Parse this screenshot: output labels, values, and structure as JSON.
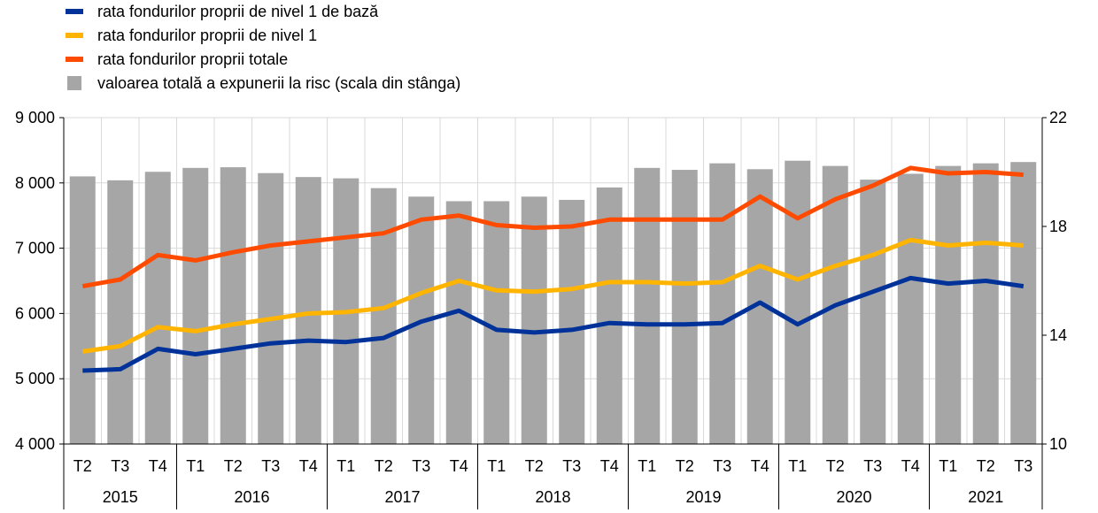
{
  "colors": {
    "cet1": "#003299",
    "tier1": "#FFB400",
    "total": "#FF4B00",
    "bars": "#A6A6A6",
    "grid": "#D9D9D9",
    "axis": "#000000"
  },
  "legend": [
    {
      "label": "rata fondurilor proprii de nivel 1 de bază",
      "color_key": "cet1",
      "kind": "line"
    },
    {
      "label": "rata fondurilor proprii de nivel 1",
      "color_key": "tier1",
      "kind": "line"
    },
    {
      "label": "rata fondurilor proprii totale",
      "color_key": "total",
      "kind": "line"
    },
    {
      "label": "valoarea totală a expunerii la risc (scala din stânga)",
      "color_key": "bars",
      "kind": "bar"
    }
  ],
  "chart_data": {
    "type": "bar+line",
    "title": "",
    "quarters": [
      "T2",
      "T3",
      "T4",
      "T1",
      "T2",
      "T3",
      "T4",
      "T1",
      "T2",
      "T3",
      "T4",
      "T1",
      "T2",
      "T3",
      "T4",
      "T1",
      "T2",
      "T3",
      "T4",
      "T1",
      "T2",
      "T3",
      "T4",
      "T1",
      "T2",
      "T3"
    ],
    "years": [
      {
        "label": "2015",
        "count": 3
      },
      {
        "label": "2016",
        "count": 4
      },
      {
        "label": "2017",
        "count": 4
      },
      {
        "label": "2018",
        "count": 4
      },
      {
        "label": "2019",
        "count": 4
      },
      {
        "label": "2020",
        "count": 4
      },
      {
        "label": "2021",
        "count": 3
      }
    ],
    "left_axis": {
      "min": 4000,
      "max": 9000,
      "ticks": [
        4000,
        5000,
        6000,
        7000,
        8000,
        9000
      ],
      "tick_labels": [
        "4 000",
        "5 000",
        "6 000",
        "7 000",
        "8 000",
        "9 000"
      ]
    },
    "right_axis": {
      "min": 10,
      "max": 22,
      "ticks": [
        10,
        14,
        18,
        22
      ],
      "tick_labels": [
        "10",
        "14",
        "18",
        "22"
      ]
    },
    "gridlines": true,
    "legend_position": "top-left",
    "bars": {
      "name": "valoarea totală a expunerii la risc (scala din stânga)",
      "axis": "left",
      "values": [
        8100,
        8040,
        8170,
        8230,
        8240,
        8150,
        8090,
        8070,
        7920,
        7790,
        7720,
        7720,
        7790,
        7740,
        7930,
        8230,
        8200,
        8300,
        8210,
        8340,
        8260,
        8050,
        8140,
        8260,
        8300,
        8320
      ]
    },
    "series": [
      {
        "name": "rata fondurilor proprii de nivel 1 de bază",
        "axis": "right",
        "color_key": "cet1",
        "values": [
          12.7,
          12.75,
          13.5,
          13.3,
          13.5,
          13.7,
          13.8,
          13.75,
          13.9,
          14.5,
          14.9,
          14.2,
          14.1,
          14.2,
          14.45,
          14.4,
          14.4,
          14.45,
          15.2,
          14.4,
          15.1,
          15.6,
          16.1,
          15.9,
          16.0,
          15.8
        ]
      },
      {
        "name": "rata fondurilor proprii de nivel 1",
        "axis": "right",
        "color_key": "tier1",
        "values": [
          13.4,
          13.6,
          14.3,
          14.15,
          14.4,
          14.6,
          14.8,
          14.85,
          15.0,
          15.55,
          16.0,
          15.65,
          15.6,
          15.7,
          15.95,
          15.95,
          15.9,
          15.95,
          16.55,
          16.05,
          16.55,
          16.95,
          17.5,
          17.3,
          17.4,
          17.3
        ]
      },
      {
        "name": "rata fondurilor proprii totale",
        "axis": "right",
        "color_key": "total",
        "values": [
          15.8,
          16.05,
          16.95,
          16.75,
          17.05,
          17.3,
          17.45,
          17.6,
          17.75,
          18.25,
          18.4,
          18.05,
          17.95,
          18.0,
          18.25,
          18.25,
          18.25,
          18.25,
          19.1,
          18.3,
          19.0,
          19.5,
          20.15,
          19.95,
          20.0,
          19.9
        ]
      }
    ]
  }
}
